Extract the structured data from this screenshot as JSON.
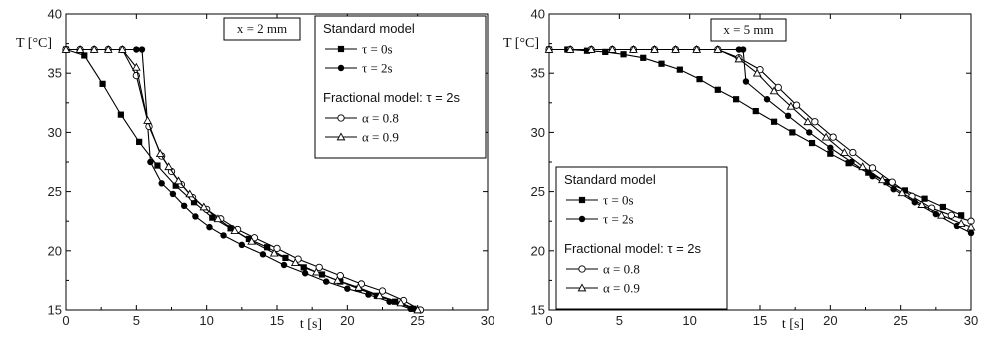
{
  "chart_data": [
    {
      "type": "line",
      "annotation": "x = 2 mm",
      "xlabel": "t [s]",
      "ylabel": "T [°C]",
      "xlim": [
        0,
        30
      ],
      "ylim": [
        15,
        40
      ],
      "xticks": [
        0,
        5,
        10,
        15,
        20,
        25,
        30
      ],
      "yticks": [
        15,
        20,
        25,
        30,
        35,
        40
      ],
      "legend": {
        "placement": "top-right",
        "group1_title": "Standard model",
        "group2_title": "Fractional model: τ = 2s",
        "entries": [
          "τ = 0s",
          "τ = 2s",
          "α = 0.8",
          "α = 0.9"
        ]
      },
      "series": [
        {
          "name": "τ = 0s",
          "marker": "filled-square",
          "x": [
            0,
            1.3,
            2.6,
            3.9,
            5.2,
            6.5,
            7.8,
            9.1,
            10.4,
            11.7,
            13,
            14.3,
            15.6,
            16.9,
            18.2,
            19.5,
            20.8,
            22.1,
            23.4,
            24.7
          ],
          "y": [
            37,
            36.5,
            34.1,
            31.5,
            29.2,
            27.2,
            25.5,
            24.1,
            22.8,
            21.9,
            21,
            20.3,
            19.4,
            18.6,
            18,
            17.4,
            16.8,
            16.2,
            15.7,
            15.1
          ]
        },
        {
          "name": "τ = 2s",
          "marker": "filled-circle",
          "x": [
            0,
            1,
            2,
            3,
            4,
            5,
            5.4,
            6,
            6.8,
            7.6,
            8.4,
            9.2,
            10.2,
            11.2,
            12.5,
            14,
            15.5,
            17,
            18.5,
            20,
            21.5,
            23,
            24.5
          ],
          "y": [
            37,
            37,
            37,
            37,
            37,
            37,
            37,
            27.5,
            25.7,
            24.8,
            23.8,
            22.9,
            22,
            21.3,
            20.5,
            19.7,
            18.8,
            18.1,
            17.4,
            16.8,
            16.3,
            15.7,
            15.1
          ]
        },
        {
          "name": "α = 0.8",
          "marker": "open-circle",
          "x": [
            0,
            1,
            2,
            3,
            4,
            5,
            5.9,
            6.8,
            7.5,
            8.2,
            9,
            10,
            11,
            12.2,
            13.4,
            15,
            16.5,
            18,
            19.5,
            21,
            22.5,
            24,
            25.2
          ],
          "y": [
            37,
            37,
            37,
            37,
            37,
            34.8,
            30.5,
            28,
            26.7,
            25.6,
            24.5,
            23.5,
            22.7,
            21.8,
            21.1,
            20.2,
            19.3,
            18.6,
            17.9,
            17.2,
            16.6,
            15.8,
            15
          ]
        },
        {
          "name": "α = 0.9",
          "marker": "open-triangle",
          "x": [
            0,
            1,
            2,
            3,
            4,
            5,
            5.8,
            6.7,
            7.3,
            8,
            8.8,
            9.8,
            10.8,
            12,
            13.2,
            14.8,
            16.3,
            17.8,
            19.3,
            20.8,
            22.3,
            23.8,
            25
          ],
          "y": [
            37,
            37,
            37,
            37,
            37,
            35.5,
            31,
            28.2,
            27.1,
            25.9,
            24.8,
            23.7,
            22.7,
            21.7,
            20.8,
            19.8,
            19,
            18.2,
            17.5,
            16.9,
            16.2,
            15.6,
            15
          ]
        }
      ]
    },
    {
      "type": "line",
      "annotation": "x = 5 mm",
      "xlabel": "t [s]",
      "ylabel": "T [°C]",
      "xlim": [
        0,
        30
      ],
      "ylim": [
        15,
        40
      ],
      "xticks": [
        0,
        5,
        10,
        15,
        20,
        25,
        30
      ],
      "yticks": [
        15,
        20,
        25,
        30,
        35,
        40
      ],
      "legend": {
        "placement": "bottom-left",
        "group1_title": "Standard model",
        "group2_title": "Fractional model: τ = 2s",
        "entries": [
          "τ = 0s",
          "τ = 2s",
          "α = 0.8",
          "α = 0.9"
        ]
      },
      "series": [
        {
          "name": "τ = 0s",
          "marker": "filled-square",
          "x": [
            0,
            1.3,
            2.7,
            4,
            5.3,
            6.7,
            8,
            9.3,
            10.7,
            12,
            13.3,
            14.7,
            16,
            17.3,
            18.7,
            20,
            21.3,
            22.7,
            24,
            25.3,
            26.7,
            28,
            29.3
          ],
          "y": [
            37,
            37,
            36.9,
            36.8,
            36.6,
            36.3,
            35.8,
            35.3,
            34.5,
            33.6,
            32.8,
            31.8,
            30.9,
            30,
            29.1,
            28.2,
            27.4,
            26.6,
            25.8,
            25.1,
            24.4,
            23.7,
            23
          ]
        },
        {
          "name": "τ = 2s",
          "marker": "filled-circle",
          "x": [
            0,
            1.5,
            3,
            4.5,
            6,
            7.5,
            9,
            10.5,
            12,
            13.5,
            13.8,
            14,
            15.5,
            17,
            18.5,
            20,
            21.5,
            23,
            24.5,
            26,
            27.5,
            29,
            30
          ],
          "y": [
            37,
            37,
            37,
            37,
            37,
            37,
            37,
            37,
            37,
            37,
            37,
            34.3,
            32.8,
            31.4,
            30,
            28.7,
            27.5,
            26.3,
            25.2,
            24.1,
            23.1,
            22.1,
            21.5
          ]
        },
        {
          "name": "α = 0.8",
          "marker": "open-circle",
          "x": [
            0,
            1.5,
            3,
            4.5,
            6,
            7.5,
            9,
            10.5,
            12,
            13.5,
            15,
            16.3,
            17.6,
            18.9,
            20.2,
            21.6,
            23,
            24.4,
            25.8,
            27.2,
            28.6,
            30
          ],
          "y": [
            37,
            37,
            37,
            37,
            37,
            37,
            37,
            37,
            37,
            36.3,
            35.3,
            33.8,
            32.3,
            30.9,
            29.6,
            28.3,
            27,
            25.8,
            24.6,
            23.6,
            23,
            22.5
          ]
        },
        {
          "name": "α = 0.9",
          "marker": "open-triangle",
          "x": [
            0,
            1.5,
            3,
            4.5,
            6,
            7.5,
            9,
            10.5,
            12,
            13.5,
            14.8,
            16,
            17.2,
            18.4,
            19.7,
            21,
            22.3,
            23.7,
            25.1,
            26.5,
            27.9,
            29.3,
            30
          ],
          "y": [
            37,
            37,
            37,
            37,
            37,
            37,
            37,
            37,
            37,
            36.2,
            35,
            33.5,
            32.2,
            30.9,
            29.6,
            28.3,
            27.1,
            26,
            24.9,
            23.9,
            23,
            22.3,
            22
          ]
        }
      ]
    }
  ]
}
